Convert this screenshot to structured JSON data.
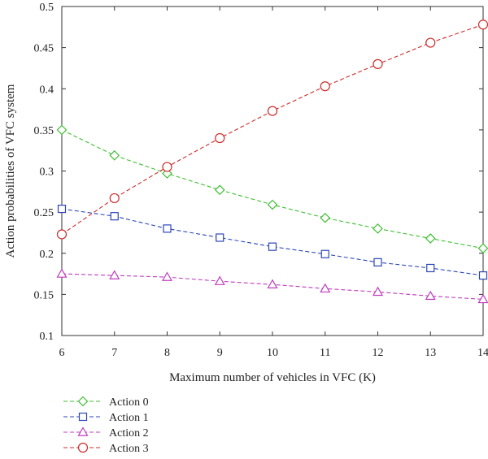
{
  "chart_data": {
    "type": "line",
    "xlabel": "Maximum number of vehicles in VFC (K)",
    "ylabel": "Action probabilities of VFC system",
    "xlim": [
      6,
      14
    ],
    "ylim": [
      0.1,
      0.5
    ],
    "xticks": [
      "6",
      "7",
      "8",
      "9",
      "10",
      "11",
      "12",
      "13",
      "14"
    ],
    "yticks": [
      "0.1",
      "0.15",
      "0.2",
      "0.25",
      "0.3",
      "0.35",
      "0.4",
      "0.45",
      "0.5"
    ],
    "grid": false,
    "legend_position": "bottom-left, below the plot",
    "x": [
      6,
      7,
      8,
      9,
      10,
      11,
      12,
      13,
      14
    ],
    "series": [
      {
        "name": "Action 0",
        "color": "#3dbf2f",
        "marker": "diamond",
        "values": [
          0.35,
          0.319,
          0.297,
          0.277,
          0.259,
          0.243,
          0.23,
          0.218,
          0.206
        ]
      },
      {
        "name": "Action 1",
        "color": "#2c46b8",
        "marker": "square",
        "values": [
          0.254,
          0.245,
          0.23,
          0.219,
          0.208,
          0.199,
          0.189,
          0.182,
          0.173
        ]
      },
      {
        "name": "Action 2",
        "color": "#c03cc0",
        "marker": "triangle",
        "values": [
          0.175,
          0.173,
          0.171,
          0.166,
          0.162,
          0.157,
          0.153,
          0.148,
          0.144
        ]
      },
      {
        "name": "Action 3",
        "color": "#cc2b2b",
        "marker": "circle",
        "values": [
          0.223,
          0.267,
          0.305,
          0.34,
          0.373,
          0.403,
          0.43,
          0.456,
          0.478
        ]
      }
    ]
  }
}
